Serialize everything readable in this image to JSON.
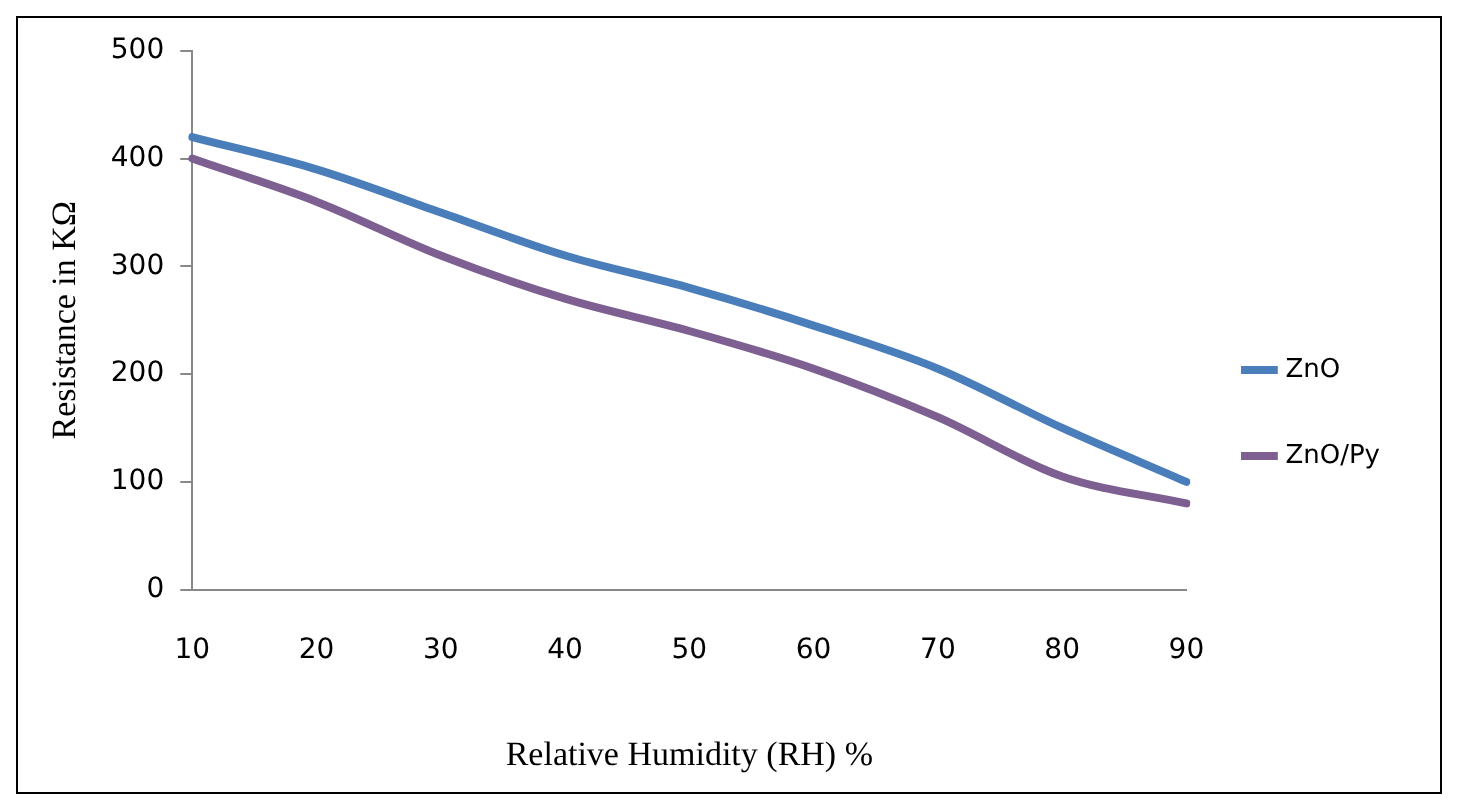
{
  "chart_data": {
    "type": "line",
    "xlabel": "Relative Humidity (RH) %",
    "ylabel": "Resistance in KΩ",
    "categories": [
      "10",
      "20",
      "30",
      "40",
      "50",
      "60",
      "70",
      "80",
      "90"
    ],
    "series": [
      {
        "name": "ZnO",
        "color": "#4a7ebb",
        "values": [
          420,
          390,
          350,
          310,
          280,
          245,
          205,
          150,
          100
        ]
      },
      {
        "name": "ZnO/Py",
        "color": "#7d5f92",
        "values": [
          400,
          360,
          310,
          270,
          240,
          205,
          160,
          105,
          80
        ]
      }
    ],
    "ylim": [
      0,
      500
    ],
    "yticks": [
      0,
      100,
      200,
      300,
      400,
      500
    ],
    "grid": false,
    "legend": "right",
    "marker": "none",
    "line_style": "solid"
  }
}
